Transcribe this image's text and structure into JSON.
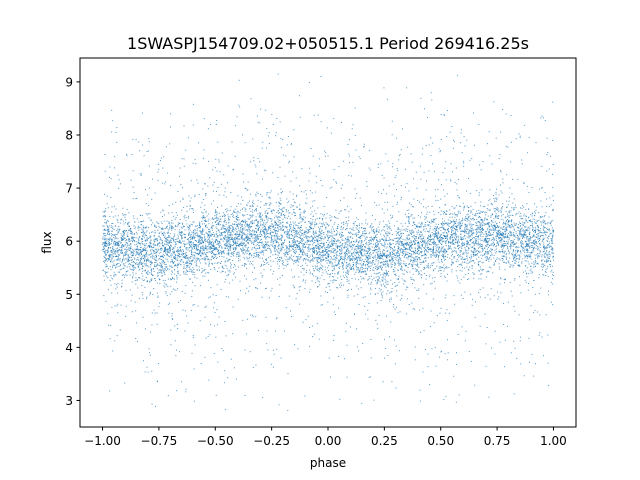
{
  "chart_data": {
    "type": "scatter",
    "title": "1SWASPJ154709.02+050515.1 Period 269416.25s",
    "xlabel": "phase",
    "ylabel": "flux",
    "xlim": [
      -1.1,
      1.1
    ],
    "ylim": [
      2.5,
      9.45
    ],
    "xticks": [
      -1.0,
      -0.75,
      -0.5,
      -0.25,
      0.0,
      0.25,
      0.5,
      0.75,
      1.0
    ],
    "xtick_labels": [
      "−1.00",
      "−0.75",
      "−0.50",
      "−0.25",
      "0.00",
      "0.25",
      "0.50",
      "0.75",
      "1.00"
    ],
    "yticks": [
      3,
      4,
      5,
      6,
      7,
      8,
      9
    ],
    "ytick_labels": [
      "3",
      "4",
      "5",
      "6",
      "7",
      "8",
      "9"
    ],
    "grid": false,
    "marker_color": "#1f77b4",
    "series": [
      {
        "phase_range": [
          -1.0,
          1.0
        ],
        "flux_range": [
          2.8,
          9.15
        ],
        "trend": {
          "phase": [
            -1.0,
            -0.75,
            -0.5,
            -0.25,
            0.0,
            0.25,
            0.5,
            0.75,
            1.0
          ],
          "flux": [
            5.9,
            5.8,
            6.0,
            6.15,
            5.85,
            5.75,
            6.0,
            6.15,
            5.9
          ]
        },
        "core_scatter": 0.3
      }
    ]
  }
}
